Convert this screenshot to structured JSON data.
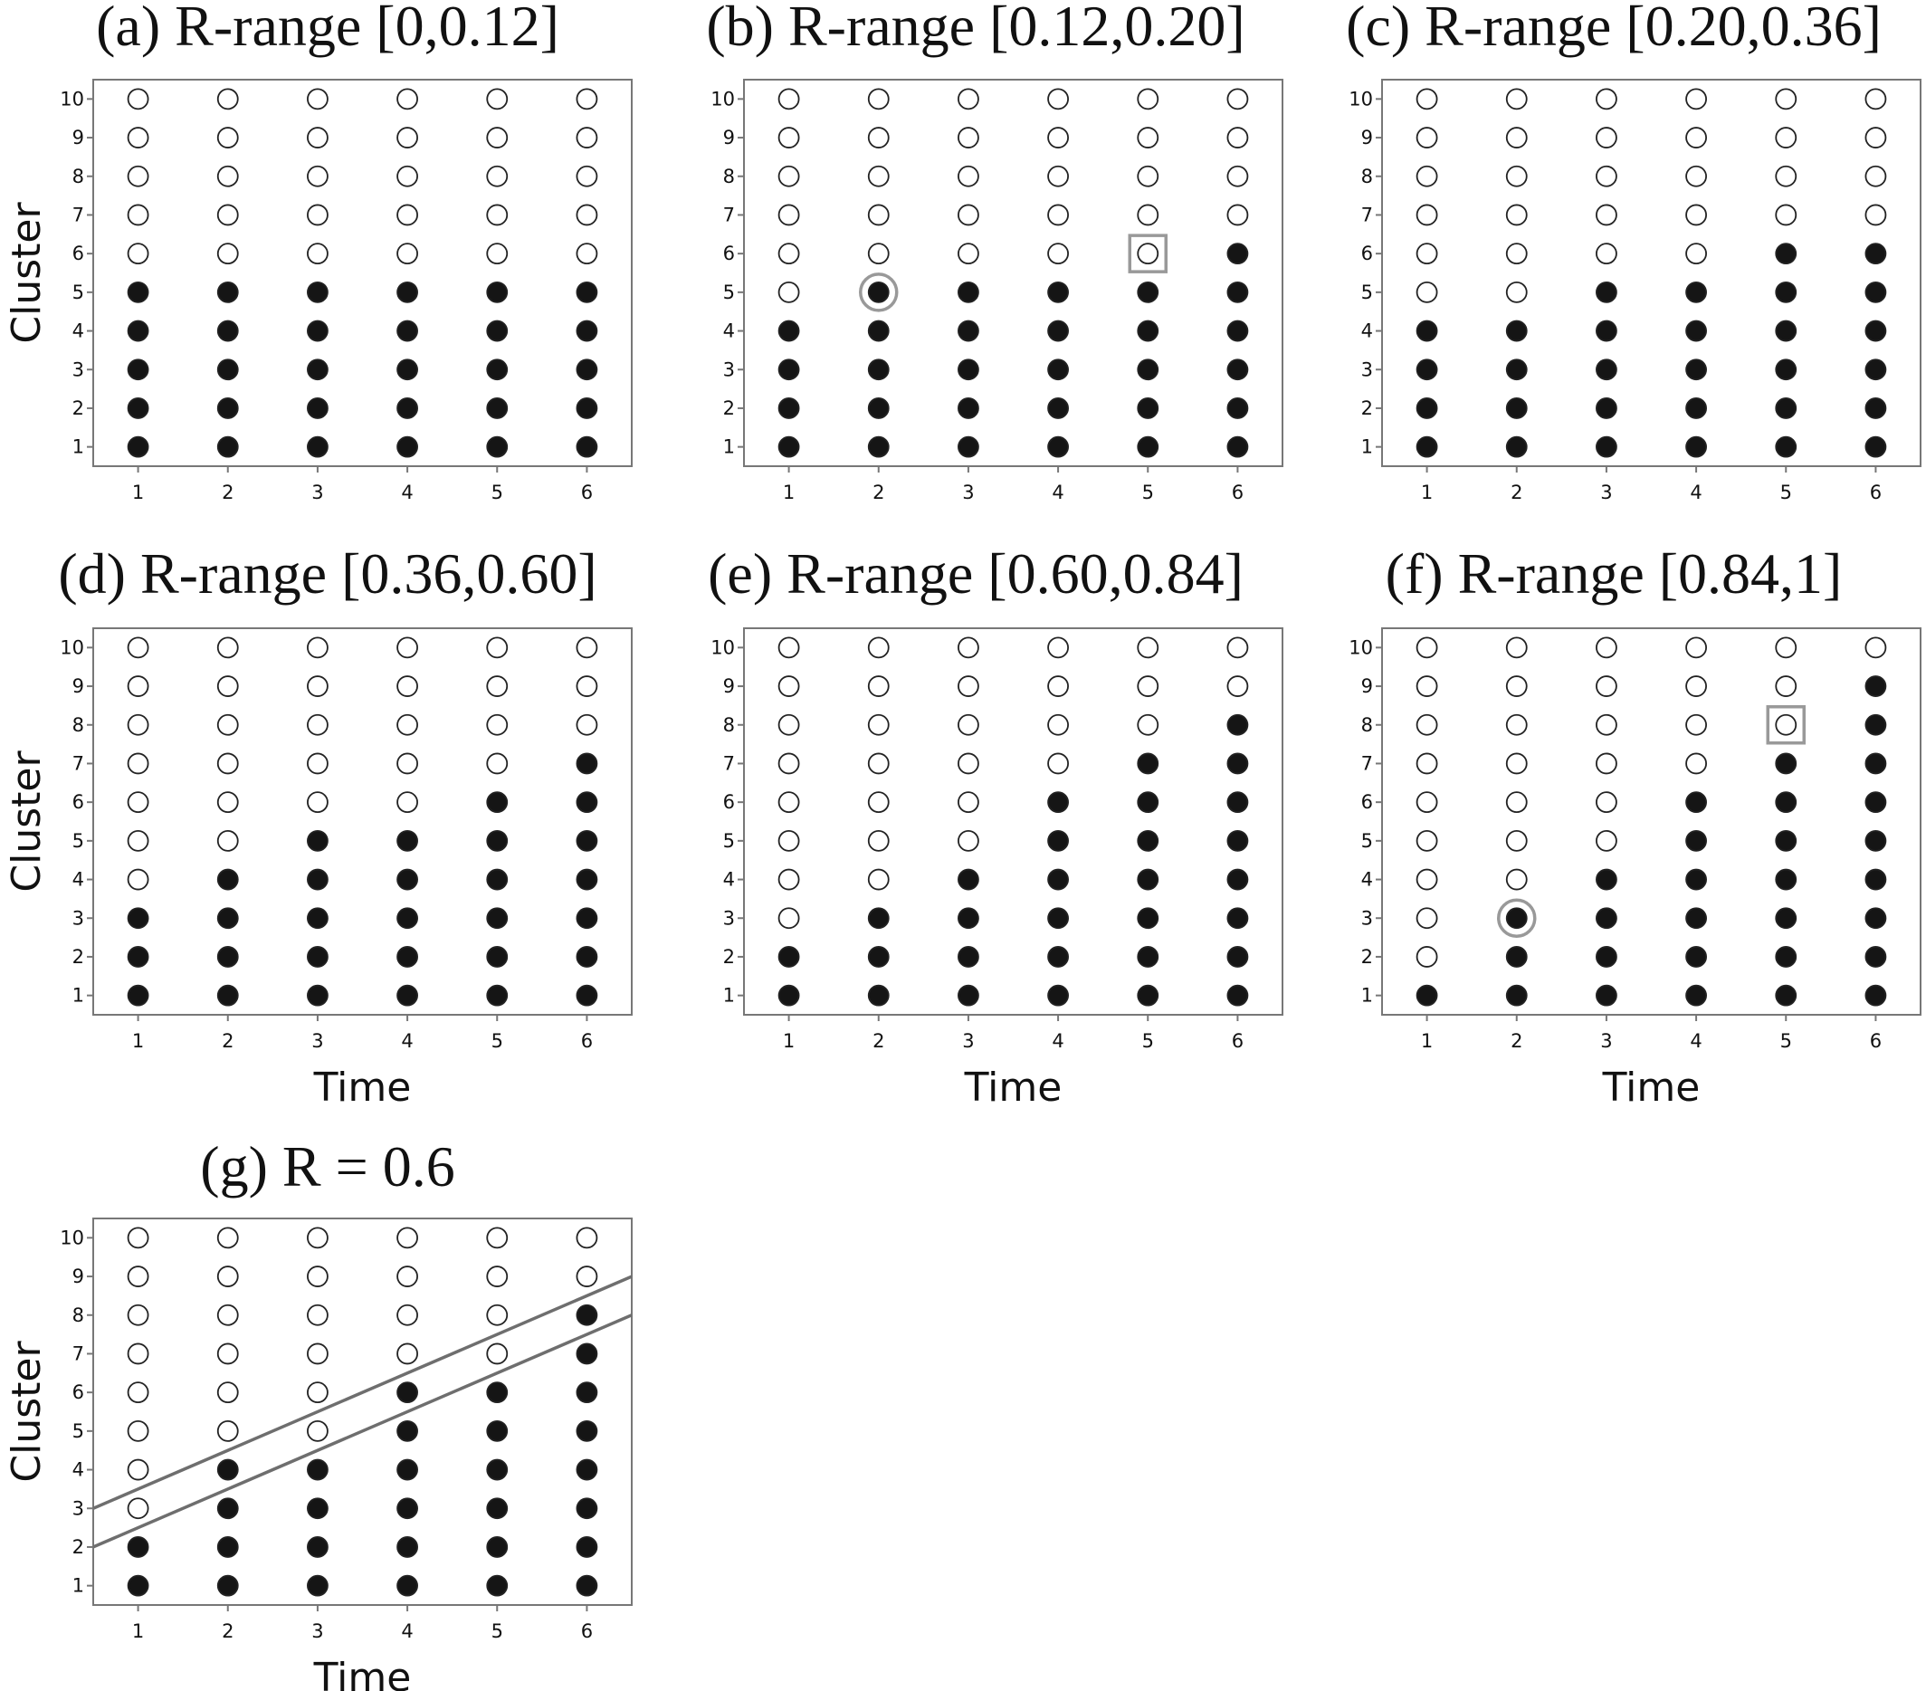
{
  "chart_data": [
    {
      "id": "a",
      "type": "scatter",
      "title": "(a) R-range [0,0.12]",
      "xlabel": "",
      "ylabel": "Cluster",
      "x_ticks": [
        1,
        2,
        3,
        4,
        5,
        6
      ],
      "y_ticks": [
        1,
        2,
        3,
        4,
        5,
        6,
        7,
        8,
        9,
        10
      ],
      "series": [
        {
          "name": "",
          "x": [
            1,
            2,
            3,
            4,
            5,
            6
          ],
          "intervention_start_cluster": [
            5,
            5,
            5,
            5,
            5,
            5
          ]
        }
      ],
      "note_encoding": "filled circle = cluster <= value at time",
      "highlight_circle": null,
      "highlight_square": null,
      "lines": []
    },
    {
      "id": "b",
      "type": "scatter",
      "title": "(b) R-range [0.12,0.20]",
      "xlabel": "",
      "ylabel": "",
      "x_ticks": [
        1,
        2,
        3,
        4,
        5,
        6
      ],
      "y_ticks": [
        1,
        2,
        3,
        4,
        5,
        6,
        7,
        8,
        9,
        10
      ],
      "series": [
        {
          "name": "",
          "x": [
            1,
            2,
            3,
            4,
            5,
            6
          ],
          "intervention_start_cluster": [
            4,
            5,
            5,
            5,
            5,
            6
          ]
        }
      ],
      "highlight_circle": {
        "x": 2,
        "y": 5
      },
      "highlight_square": {
        "x": 5,
        "y": 6
      },
      "lines": []
    },
    {
      "id": "c",
      "type": "scatter",
      "title": "(c) R-range [0.20,0.36]",
      "xlabel": "",
      "ylabel": "",
      "x_ticks": [
        1,
        2,
        3,
        4,
        5,
        6
      ],
      "y_ticks": [
        1,
        2,
        3,
        4,
        5,
        6,
        7,
        8,
        9,
        10
      ],
      "series": [
        {
          "name": "",
          "x": [
            1,
            2,
            3,
            4,
            5,
            6
          ],
          "intervention_start_cluster": [
            4,
            4,
            5,
            5,
            6,
            6
          ]
        }
      ],
      "highlight_circle": null,
      "highlight_square": null,
      "lines": []
    },
    {
      "id": "d",
      "type": "scatter",
      "title": "(d) R-range [0.36,0.60]",
      "xlabel": "Time",
      "ylabel": "Cluster",
      "x_ticks": [
        1,
        2,
        3,
        4,
        5,
        6
      ],
      "y_ticks": [
        1,
        2,
        3,
        4,
        5,
        6,
        7,
        8,
        9,
        10
      ],
      "series": [
        {
          "name": "",
          "x": [
            1,
            2,
            3,
            4,
            5,
            6
          ],
          "intervention_start_cluster": [
            3,
            4,
            5,
            5,
            6,
            7
          ]
        }
      ],
      "highlight_circle": null,
      "highlight_square": null,
      "lines": []
    },
    {
      "id": "e",
      "type": "scatter",
      "title": "(e) R-range [0.60,0.84]",
      "xlabel": "Time",
      "ylabel": "",
      "x_ticks": [
        1,
        2,
        3,
        4,
        5,
        6
      ],
      "y_ticks": [
        1,
        2,
        3,
        4,
        5,
        6,
        7,
        8,
        9,
        10
      ],
      "series": [
        {
          "name": "",
          "x": [
            1,
            2,
            3,
            4,
            5,
            6
          ],
          "intervention_start_cluster": [
            2,
            3,
            4,
            6,
            7,
            8
          ]
        }
      ],
      "highlight_circle": null,
      "highlight_square": null,
      "lines": []
    },
    {
      "id": "f",
      "type": "scatter",
      "title": "(f) R-range [0.84,1]",
      "xlabel": "Time",
      "ylabel": "",
      "x_ticks": [
        1,
        2,
        3,
        4,
        5,
        6
      ],
      "y_ticks": [
        1,
        2,
        3,
        4,
        5,
        6,
        7,
        8,
        9,
        10
      ],
      "series": [
        {
          "name": "",
          "x": [
            1,
            2,
            3,
            4,
            5,
            6
          ],
          "intervention_start_cluster": [
            1,
            3,
            4,
            6,
            7,
            9
          ]
        }
      ],
      "highlight_circle": {
        "x": 2,
        "y": 3
      },
      "highlight_square": {
        "x": 5,
        "y": 8
      },
      "lines": []
    },
    {
      "id": "g",
      "type": "scatter",
      "title": "(g) R = 0.6",
      "xlabel": "Time",
      "ylabel": "Cluster",
      "x_ticks": [
        1,
        2,
        3,
        4,
        5,
        6
      ],
      "y_ticks": [
        1,
        2,
        3,
        4,
        5,
        6,
        7,
        8,
        9,
        10
      ],
      "series": [
        {
          "name": "",
          "x": [
            1,
            2,
            3,
            4,
            5,
            6
          ],
          "intervention_start_cluster": [
            2,
            4,
            4,
            6,
            6,
            8
          ]
        }
      ],
      "highlight_circle": null,
      "highlight_square": null,
      "lines": [
        {
          "x0": 0.5,
          "y0": 3.0,
          "x1": 6.5,
          "y1": 9.0
        },
        {
          "x0": 0.5,
          "y0": 2.0,
          "x1": 6.5,
          "y1": 8.0
        }
      ]
    }
  ],
  "colors": {
    "filled": "#151515",
    "open": "#ffffff",
    "marker_stroke": "#222222",
    "frame": "#777777",
    "highlight": "#999999",
    "line": "#6e6e6e"
  }
}
